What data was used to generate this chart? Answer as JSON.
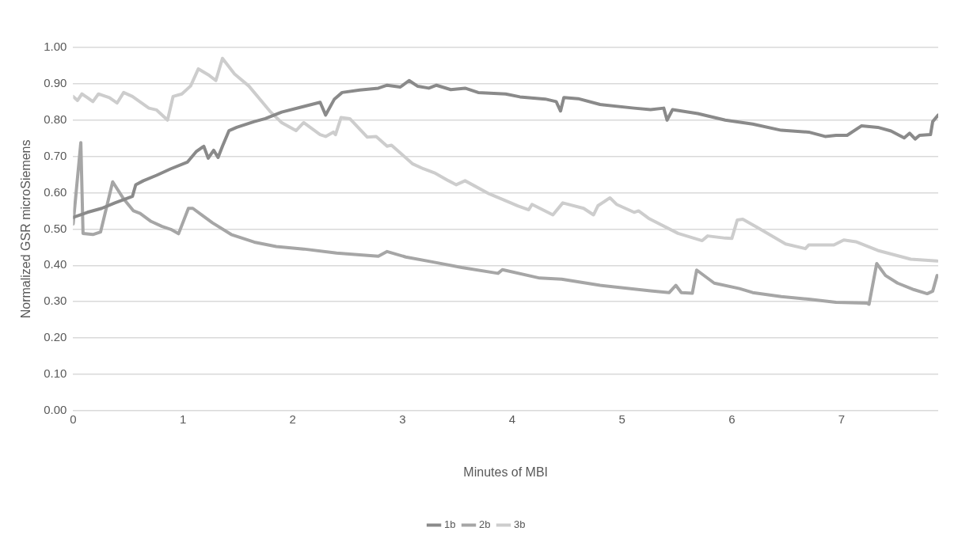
{
  "chart_data": {
    "type": "line",
    "xlabel": "Minutes of MBI",
    "ylabel": "Normalized GSR microSiemens",
    "xlim": [
      0,
      7.88
    ],
    "xticks": [
      0,
      1,
      2,
      3,
      4,
      5,
      6,
      7
    ],
    "ylim": [
      0,
      1
    ],
    "yticks": [
      {
        "value": 0,
        "label": "0.00"
      },
      {
        "value": 0.1,
        "label": "0.10"
      },
      {
        "value": 0.2,
        "label": "0.20"
      },
      {
        "value": 0.3,
        "label": "0.30"
      },
      {
        "value": 0.4,
        "label": "0.40"
      },
      {
        "value": 0.5,
        "label": "0.50"
      },
      {
        "value": 0.6,
        "label": "0.60"
      },
      {
        "value": 0.7,
        "label": "0.70"
      },
      {
        "value": 0.8,
        "label": "0.80"
      },
      {
        "value": 0.9,
        "label": "0.90"
      },
      {
        "value": 1,
        "label": "1.00"
      }
    ],
    "grid": "y",
    "legend": "bottom",
    "marker": "none",
    "line_style": "solid",
    "series": [
      {
        "name": "1b",
        "color": "#8a8a8a",
        "x": [
          0,
          0.13,
          0.26,
          0.38,
          0.54,
          0.57,
          0.64,
          0.76,
          0.89,
          1.04,
          1.12,
          1.19,
          1.23,
          1.28,
          1.32,
          1.36,
          1.42,
          1.49,
          1.65,
          1.75,
          1.9,
          2.08,
          2.25,
          2.3,
          2.38,
          2.45,
          2.61,
          2.78,
          2.86,
          2.98,
          3.06,
          3.14,
          3.24,
          3.31,
          3.44,
          3.57,
          3.69,
          3.94,
          4.07,
          4.3,
          4.4,
          4.44,
          4.47,
          4.6,
          4.8,
          5.11,
          5.26,
          5.38,
          5.41,
          5.46,
          5.69,
          5.94,
          6.19,
          6.45,
          6.7,
          6.85,
          6.95,
          7.05,
          7.18,
          7.33,
          7.45,
          7.57,
          7.62,
          7.67,
          7.71,
          7.81,
          7.83,
          7.88
        ],
        "values": [
          0.532,
          0.546,
          0.557,
          0.572,
          0.59,
          0.622,
          0.633,
          0.648,
          0.666,
          0.684,
          0.713,
          0.728,
          0.695,
          0.717,
          0.697,
          0.728,
          0.771,
          0.78,
          0.796,
          0.804,
          0.822,
          0.836,
          0.849,
          0.814,
          0.858,
          0.876,
          0.883,
          0.888,
          0.896,
          0.891,
          0.909,
          0.893,
          0.888,
          0.896,
          0.884,
          0.888,
          0.876,
          0.872,
          0.864,
          0.858,
          0.851,
          0.825,
          0.862,
          0.859,
          0.843,
          0.833,
          0.829,
          0.833,
          0.8,
          0.829,
          0.818,
          0.8,
          0.789,
          0.772,
          0.767,
          0.755,
          0.758,
          0.758,
          0.784,
          0.78,
          0.77,
          0.751,
          0.764,
          0.748,
          0.758,
          0.76,
          0.796,
          0.814
        ]
      },
      {
        "name": "2b",
        "color": "#a6a6a6",
        "x": [
          0,
          0.07,
          0.09,
          0.18,
          0.25,
          0.36,
          0.46,
          0.55,
          0.61,
          0.71,
          0.81,
          0.89,
          0.96,
          1.05,
          1.09,
          1.27,
          1.44,
          1.65,
          1.85,
          2.1,
          2.4,
          2.61,
          2.78,
          2.86,
          3.03,
          3.28,
          3.54,
          3.87,
          3.91,
          4.25,
          4.45,
          4.8,
          5.26,
          5.43,
          5.49,
          5.54,
          5.64,
          5.68,
          5.84,
          6.07,
          6.19,
          6.45,
          6.7,
          6.95,
          7.23,
          7.25,
          7.32,
          7.4,
          7.51,
          7.66,
          7.78,
          7.83,
          7.87
        ],
        "values": [
          0.514,
          0.738,
          0.488,
          0.485,
          0.492,
          0.63,
          0.583,
          0.55,
          0.543,
          0.521,
          0.507,
          0.499,
          0.487,
          0.557,
          0.557,
          0.517,
          0.485,
          0.464,
          0.452,
          0.445,
          0.434,
          0.429,
          0.425,
          0.438,
          0.423,
          0.409,
          0.394,
          0.378,
          0.388,
          0.365,
          0.362,
          0.345,
          0.33,
          0.325,
          0.345,
          0.325,
          0.323,
          0.387,
          0.351,
          0.336,
          0.325,
          0.314,
          0.307,
          0.298,
          0.296,
          0.293,
          0.405,
          0.372,
          0.351,
          0.333,
          0.322,
          0.329,
          0.372
        ]
      },
      {
        "name": "3b",
        "color": "#cdcdcd",
        "x": [
          0,
          0.04,
          0.08,
          0.13,
          0.18,
          0.23,
          0.33,
          0.4,
          0.46,
          0.54,
          0.69,
          0.76,
          0.86,
          0.91,
          0.99,
          1.07,
          1.14,
          1.24,
          1.3,
          1.36,
          1.47,
          1.6,
          1.8,
          1.9,
          2.03,
          2.1,
          2.25,
          2.3,
          2.37,
          2.39,
          2.44,
          2.52,
          2.61,
          2.68,
          2.76,
          2.86,
          2.9,
          3.09,
          3.19,
          3.29,
          3.42,
          3.49,
          3.57,
          3.79,
          4.05,
          4.15,
          4.18,
          4.37,
          4.46,
          4.65,
          4.74,
          4.78,
          4.89,
          4.95,
          5.11,
          5.15,
          5.25,
          5.51,
          5.73,
          5.78,
          5.94,
          6,
          6.05,
          6.1,
          6.24,
          6.49,
          6.67,
          6.7,
          6.93,
          7.02,
          7.13,
          7.33,
          7.63,
          7.87
        ],
        "values": [
          0.865,
          0.854,
          0.872,
          0.862,
          0.851,
          0.872,
          0.862,
          0.847,
          0.876,
          0.865,
          0.833,
          0.828,
          0.8,
          0.865,
          0.872,
          0.894,
          0.941,
          0.923,
          0.909,
          0.97,
          0.927,
          0.894,
          0.822,
          0.793,
          0.771,
          0.793,
          0.76,
          0.755,
          0.767,
          0.76,
          0.807,
          0.804,
          0.775,
          0.753,
          0.755,
          0.728,
          0.731,
          0.68,
          0.666,
          0.655,
          0.633,
          0.622,
          0.633,
          0.597,
          0.564,
          0.553,
          0.568,
          0.539,
          0.572,
          0.557,
          0.539,
          0.564,
          0.586,
          0.568,
          0.546,
          0.55,
          0.528,
          0.488,
          0.468,
          0.481,
          0.475,
          0.474,
          0.525,
          0.527,
          0.503,
          0.459,
          0.446,
          0.456,
          0.456,
          0.47,
          0.465,
          0.441,
          0.417,
          0.412
        ]
      }
    ]
  }
}
